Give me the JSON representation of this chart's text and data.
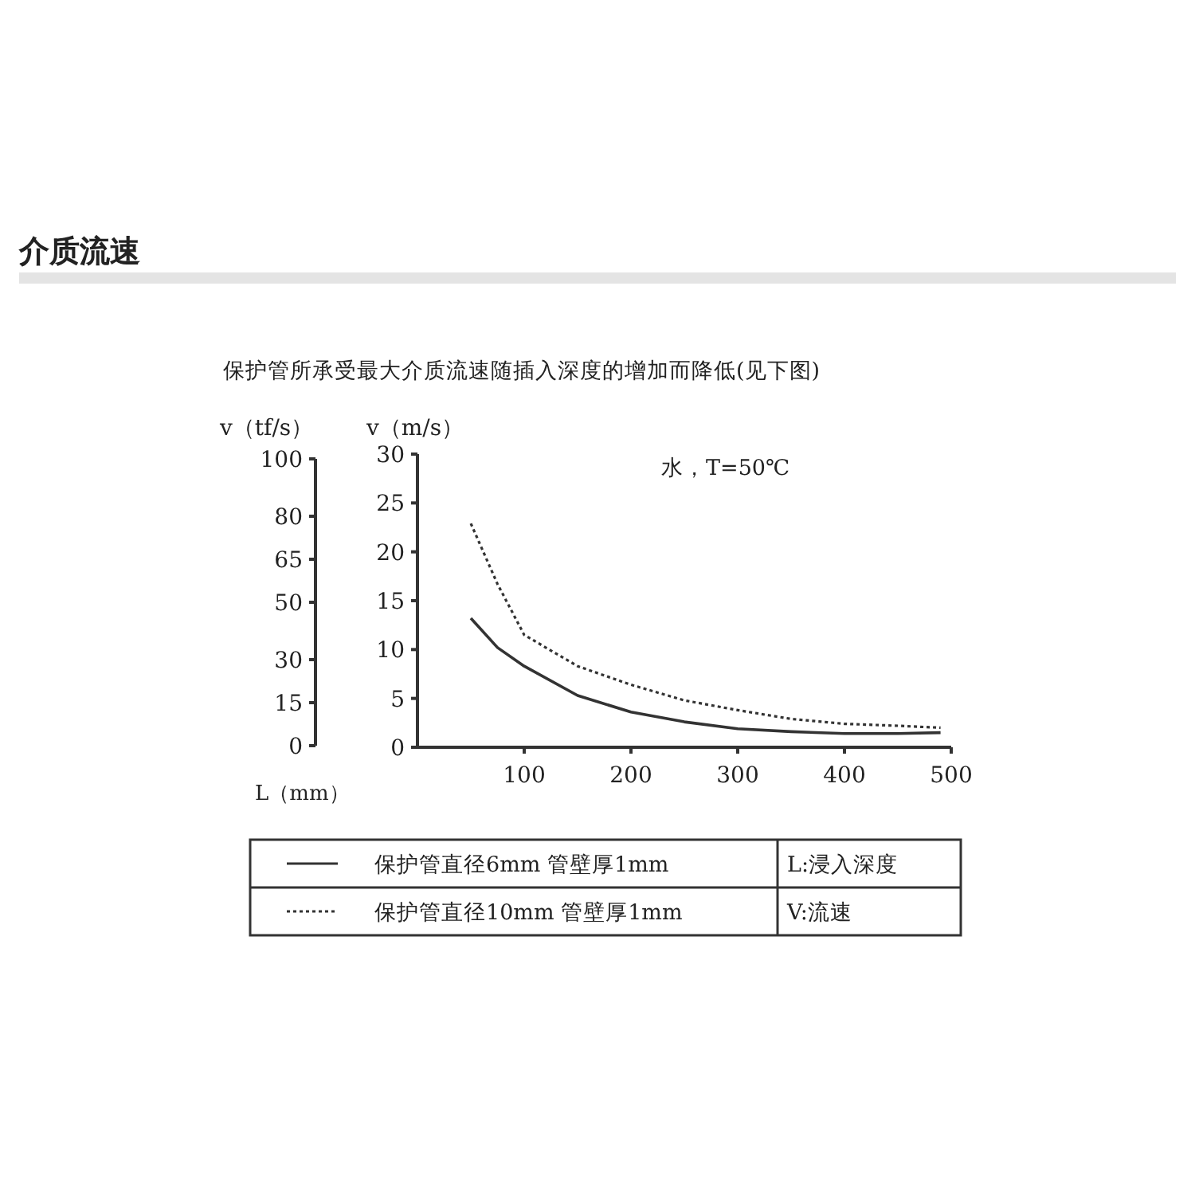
{
  "chart_data": {
    "type": "line",
    "title": "介质流速",
    "subtitle": "保护管所承受最大介质流速随插入深度的增加而降低(见下图)",
    "xlabel": "L（mm）",
    "ylabel": "v（m/s）",
    "y2label": "v（tf/s）",
    "annotations": [
      "水，T=50℃",
      "L:浸入深度",
      "V:流速"
    ],
    "xlim": [
      0,
      500
    ],
    "xticks": [
      100,
      200,
      300,
      400,
      500
    ],
    "ylim": [
      0,
      30
    ],
    "yticks": [
      0,
      5,
      10,
      15,
      20,
      25,
      30
    ],
    "y2lim": [
      0,
      100
    ],
    "y2ticks": [
      0,
      15,
      30,
      50,
      65,
      80,
      100
    ],
    "legend": "bottom",
    "grid": false,
    "series": [
      {
        "name": "保护管直径6mm  管壁厚1mm",
        "color": "#333333",
        "line_style": "solid",
        "x": [
          50,
          75,
          100,
          150,
          200,
          250,
          300,
          350,
          400,
          450,
          490
        ],
        "values": [
          13.2,
          10.2,
          8.3,
          5.3,
          3.6,
          2.6,
          1.9,
          1.6,
          1.4,
          1.4,
          1.5
        ]
      },
      {
        "name": "保护管直径10mm  管壁厚1mm",
        "color": "#333333",
        "line_style": "dotted",
        "x": [
          50,
          75,
          100,
          150,
          200,
          250,
          300,
          350,
          400,
          450,
          490
        ],
        "values": [
          22.9,
          16.7,
          11.5,
          8.3,
          6.4,
          4.8,
          3.8,
          2.9,
          2.4,
          2.2,
          2.0
        ]
      }
    ]
  }
}
